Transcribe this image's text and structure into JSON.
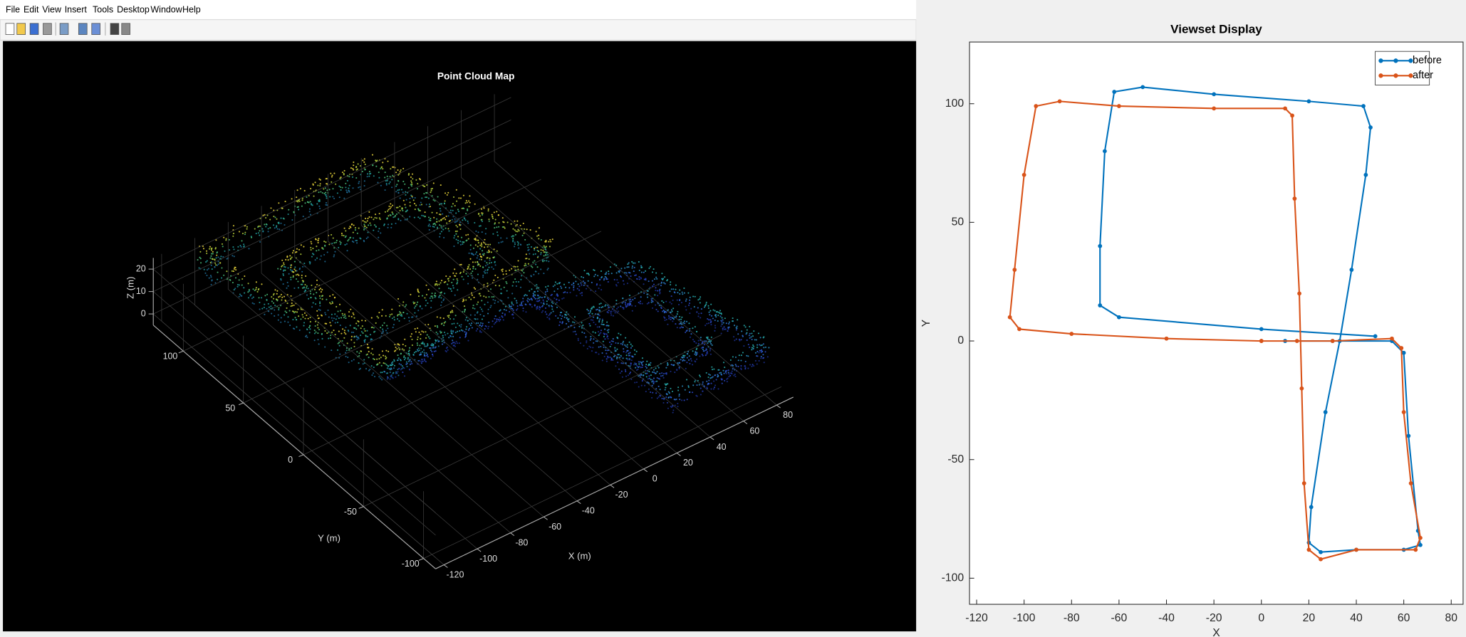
{
  "menu": [
    "File",
    "Edit",
    "View",
    "Insert",
    "Tools",
    "Desktop",
    "Window",
    "Help"
  ],
  "chart_data": [
    {
      "type": "scatter3d",
      "title": "Point Cloud Map",
      "xlabel": "X (m)",
      "ylabel": "Y (m)",
      "zlabel": "Z (m)",
      "xlim": [
        -125,
        90
      ],
      "ylim": [
        -110,
        125
      ],
      "zlim": [
        -5,
        25
      ],
      "xticks": [
        -120,
        -100,
        -80,
        -60,
        -40,
        -20,
        0,
        20,
        40,
        60,
        80
      ],
      "yticks": [
        -100,
        -50,
        0,
        50,
        100
      ],
      "zticks": [
        0,
        10,
        20
      ],
      "grid": true
    },
    {
      "type": "line",
      "title": "Viewset Display",
      "xlabel": "X",
      "ylabel": "Y",
      "xlim": [
        -123,
        85
      ],
      "ylim": [
        -111,
        126
      ],
      "xticks": [
        -120,
        -100,
        -80,
        -60,
        -40,
        -20,
        0,
        20,
        40,
        60,
        80
      ],
      "yticks": [
        -100,
        -50,
        0,
        50,
        100
      ],
      "legend": "upper right",
      "series": [
        {
          "name": "before",
          "color": "#0072bd",
          "x": [
            10,
            30,
            55,
            60,
            62,
            66,
            67,
            60,
            40,
            25,
            20,
            21,
            27,
            33,
            38,
            44,
            46,
            43,
            20,
            -20,
            -50,
            -62,
            -66,
            -68,
            -68,
            -60,
            0,
            48
          ],
          "values": [
            0,
            0,
            0,
            -5,
            -40,
            -80,
            -86,
            -88,
            -88,
            -89,
            -85,
            -70,
            -30,
            0,
            30,
            70,
            90,
            99,
            101,
            104,
            107,
            105,
            80,
            40,
            15,
            10,
            5,
            2
          ]
        },
        {
          "name": "after",
          "color": "#d95319",
          "x": [
            0,
            30,
            55,
            59,
            60,
            63,
            67,
            65,
            40,
            25,
            20,
            18,
            17,
            16,
            14,
            13,
            10,
            -20,
            -60,
            -85,
            -95,
            -100,
            -104,
            -106,
            -102,
            -80,
            -40,
            0,
            15
          ],
          "values": [
            0,
            0,
            1,
            -3,
            -30,
            -60,
            -83,
            -88,
            -88,
            -92,
            -88,
            -60,
            -20,
            20,
            60,
            95,
            98,
            98,
            99,
            101,
            99,
            70,
            30,
            10,
            5,
            3,
            1,
            0,
            0
          ]
        }
      ]
    }
  ]
}
